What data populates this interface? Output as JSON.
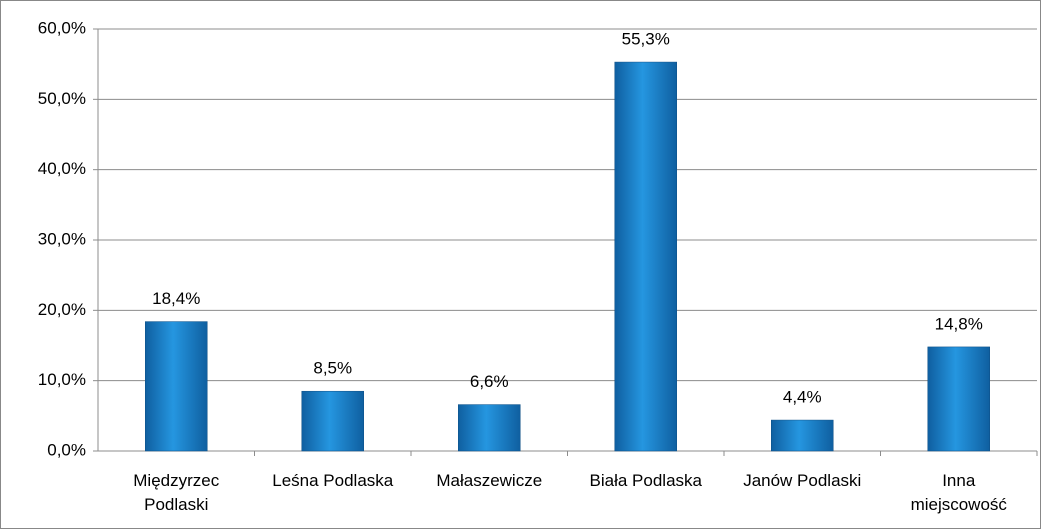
{
  "chart_data": {
    "type": "bar",
    "categories": [
      "Międzyrzec Podlaski",
      "Leśna Podlaska",
      "Małaszewicze",
      "Biała Podlaska",
      "Janów Podlaski",
      "Inna miejscowość"
    ],
    "values": [
      18.4,
      8.5,
      6.6,
      55.3,
      4.4,
      14.8
    ],
    "value_labels": [
      "18,4%",
      "8,5%",
      "6,6%",
      "55,3%",
      "4,4%",
      "14,8%"
    ],
    "color": "#1f8dd6",
    "ylim": [
      0,
      60
    ],
    "yticks": [
      {
        "value": 0,
        "label": "0,0%"
      },
      {
        "value": 10,
        "label": "10,0%"
      },
      {
        "value": 20,
        "label": "20,0%"
      },
      {
        "value": 30,
        "label": "30,0%"
      },
      {
        "value": 40,
        "label": "40,0%"
      },
      {
        "value": 50,
        "label": "50,0%"
      },
      {
        "value": 60,
        "label": "60,0%"
      }
    ],
    "grid": true
  }
}
